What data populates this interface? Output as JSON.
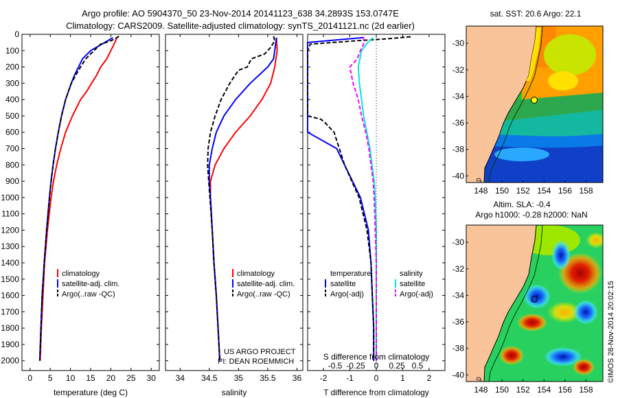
{
  "title_line1": "Argo profile: AO 5904370_50 23-Nov-2014 20141123_638 34.2893S 153.0747E",
  "title_line2": "Climatology: CARS2009. Satellite-adjusted climatology: synTS_20141121.nc (2d earlier)",
  "colors": {
    "climatology": "#ff0000",
    "satellite": "#0000ff",
    "argo": "#000000",
    "sat_salinity": "#00e5e5",
    "argo_adj": "#ff00ff",
    "land": "#f9c49a",
    "argo_marker": "#ffff00"
  },
  "depth_axis": {
    "ticks": [
      0,
      100,
      200,
      300,
      400,
      500,
      600,
      700,
      800,
      900,
      1000,
      1100,
      1200,
      1300,
      1400,
      1500,
      1600,
      1700,
      1800,
      1900,
      2000
    ],
    "ylim": [
      0,
      2060
    ]
  },
  "chart_data": [
    {
      "type": "line",
      "id": "temperature",
      "xlabel": "temperature (deg C)",
      "xlim": [
        -2,
        32
      ],
      "xticks": [
        0,
        5,
        10,
        15,
        20,
        25,
        30
      ],
      "legend": [
        "climatology",
        "satellite-adj. clim.",
        "Argo(..raw -QC)"
      ],
      "series": [
        {
          "name": "climatology",
          "style": "solid",
          "color_key": "climatology",
          "depth": [
            20,
            50,
            100,
            150,
            200,
            250,
            300,
            350,
            400,
            450,
            500,
            600,
            700,
            800,
            900,
            1000,
            1200,
            1400,
            1600,
            1800,
            2000
          ],
          "values": [
            21.5,
            21,
            20,
            19,
            17.5,
            16.5,
            15.2,
            14,
            12.5,
            11.5,
            10.5,
            8.8,
            7.6,
            6.6,
            5.8,
            5.2,
            4.3,
            3.6,
            3.2,
            2.8,
            2.5
          ]
        },
        {
          "name": "satellite-adj. clim.",
          "style": "solid",
          "color_key": "satellite",
          "depth": [
            20,
            50,
            100,
            150,
            200,
            250,
            300,
            400,
            500,
            600,
            700,
            800,
            900,
            1000,
            1200,
            1400,
            1600,
            1800,
            2000
          ],
          "values": [
            20.5,
            18.5,
            15,
            13,
            12,
            11,
            10.2,
            8.8,
            7.8,
            7,
            6.3,
            5.7,
            5.2,
            4.8,
            4.1,
            3.5,
            3,
            2.7,
            2.4
          ]
        },
        {
          "name": "Argo(..raw -QC)",
          "style": "dashed",
          "color_key": "argo",
          "depth": [
            12,
            20,
            40,
            60,
            100,
            150,
            200,
            250,
            300,
            400,
            500,
            600,
            700,
            800,
            900,
            1000,
            1200,
            1400,
            1600,
            1800,
            2000
          ],
          "values": [
            22,
            21.5,
            20,
            17.5,
            15.8,
            13.8,
            12.5,
            11.3,
            10.2,
            8.8,
            7.8,
            7,
            6.3,
            5.7,
            5.2,
            4.8,
            4.1,
            3.5,
            3,
            2.7,
            2.4
          ]
        }
      ]
    },
    {
      "type": "line",
      "id": "salinity",
      "xlabel": "salinity",
      "xlim": [
        33.75,
        36.1
      ],
      "xticks": [
        34,
        34.5,
        35,
        35.5,
        36
      ],
      "legend": [
        "climatology",
        "satellite-adj. clim.",
        "Argo(..raw -QC)"
      ],
      "annotation": [
        "US ARGO PROJECT",
        "PI: DEAN ROEMMICH"
      ],
      "series": [
        {
          "name": "climatology",
          "style": "solid",
          "color_key": "climatology",
          "depth": [
            20,
            100,
            200,
            300,
            400,
            500,
            600,
            700,
            800,
            900,
            1000,
            1200,
            1400,
            1600,
            1800,
            2000
          ],
          "values": [
            35.65,
            35.66,
            35.62,
            35.55,
            35.4,
            35.2,
            34.95,
            34.75,
            34.6,
            34.52,
            34.52,
            34.55,
            34.58,
            34.62,
            34.65,
            34.68
          ]
        },
        {
          "name": "satellite-adj. clim.",
          "style": "solid",
          "color_key": "satellite",
          "depth": [
            20,
            100,
            150,
            200,
            300,
            400,
            500,
            600,
            700,
            800,
            900,
            1000,
            1200,
            1400,
            1600,
            1800,
            2000
          ],
          "values": [
            35.65,
            35.62,
            35.6,
            35.5,
            35.2,
            34.95,
            34.75,
            34.62,
            34.55,
            34.5,
            34.5,
            34.52,
            34.55,
            34.58,
            34.62,
            34.65,
            34.68
          ]
        },
        {
          "name": "Argo(..raw -QC)",
          "style": "dashed",
          "color_key": "argo",
          "depth": [
            12,
            40,
            80,
            120,
            150,
            200,
            220,
            300,
            400,
            500,
            600,
            700,
            800,
            900,
            1000,
            1200,
            1400,
            1600,
            1800,
            2000
          ],
          "values": [
            35.6,
            35.62,
            35.55,
            35.45,
            35.22,
            35.15,
            35.0,
            34.85,
            34.7,
            34.6,
            34.52,
            34.48,
            34.47,
            34.49,
            34.51,
            34.55,
            34.58,
            34.62,
            34.65,
            34.68
          ]
        }
      ]
    },
    {
      "type": "line",
      "id": "difference",
      "xlabel": "T difference from climatology",
      "xlabel_top": "S difference from climatology",
      "xlim": [
        -2.6,
        2.6
      ],
      "xticks": [
        -2,
        -1,
        0,
        1,
        2
      ],
      "xticks_s": [
        "-0.5",
        "-0.25",
        "0",
        "0.25",
        "0.5"
      ],
      "legend_temperature_header": "temperature",
      "legend_salinity_header": "salinity",
      "legend": [
        "satellite",
        "Argo(-adj)",
        "satellite",
        "Argo(-adj)"
      ],
      "series": [
        {
          "name": "T satellite",
          "style": "solid",
          "color_key": "satellite",
          "depth": [
            20,
            50,
            60,
            100,
            200,
            400,
            600,
            700,
            800,
            1000,
            1200,
            1400,
            1600,
            1800,
            2000
          ],
          "values": [
            -0.5,
            -2.6,
            -2.6,
            -2.6,
            -2.6,
            -2.6,
            -2.6,
            -1.5,
            -1.2,
            -0.6,
            -0.3,
            -0.2,
            -0.15,
            -0.1,
            -0.1
          ]
        },
        {
          "name": "T Argo(-adj)",
          "style": "dashed",
          "color_key": "argo",
          "depth": [
            15,
            30,
            40,
            60,
            100,
            200,
            400,
            500,
            520,
            540,
            600,
            800,
            1000,
            1200,
            1400,
            1600,
            1800,
            2000
          ],
          "values": [
            1.3,
            0.2,
            -0.8,
            -2.5,
            -2.6,
            -2.6,
            -2.6,
            -2.6,
            -2.1,
            -1.95,
            -1.6,
            -1.2,
            -0.65,
            -0.35,
            -0.2,
            -0.15,
            -0.1,
            -0.1
          ]
        },
        {
          "name": "S satellite",
          "style": "solid",
          "color_key": "sat_salinity",
          "depth": [
            20,
            50,
            100,
            200,
            300,
            400,
            500,
            600,
            700,
            800,
            900,
            1000,
            1200,
            1400,
            1600,
            1800,
            2000
          ],
          "values": [
            -0.03,
            -0.08,
            -0.14,
            -0.17,
            -0.16,
            -0.14,
            -0.12,
            -0.09,
            -0.06,
            -0.04,
            -0.02,
            -0.01,
            0,
            0,
            0,
            0,
            0
          ]
        },
        {
          "name": "S Argo(-adj)",
          "style": "dashed",
          "color_key": "argo_adj",
          "depth": [
            15,
            60,
            100,
            150,
            200,
            300,
            400,
            500,
            600,
            700,
            800,
            900,
            1000,
            1200,
            1400,
            1600,
            1800,
            2000
          ],
          "values": [
            -0.12,
            -0.12,
            -0.15,
            -0.18,
            -0.25,
            -0.22,
            -0.17,
            -0.14,
            -0.1,
            -0.07,
            -0.05,
            -0.03,
            -0.02,
            -0.01,
            0,
            0,
            0,
            0
          ]
        }
      ]
    },
    {
      "type": "heatmap",
      "id": "sst_map",
      "title": "sat. SST: 20.6  Argo: 22.1",
      "xlim": [
        146.6,
        159.6
      ],
      "ylim": [
        -40.5,
        -28.7
      ],
      "xticks": [
        148,
        150,
        152,
        154,
        156,
        158
      ],
      "yticks": [
        -30,
        -32,
        -34,
        -36,
        -38,
        -40
      ],
      "argo_position": {
        "lon": 153.07,
        "lat": -34.29
      }
    },
    {
      "type": "heatmap",
      "id": "sla_map",
      "title_line1": "Altim. SLA: -0.4",
      "title_line2": "Argo h1000: -0.28 h2000: NaN",
      "xlim": [
        146.6,
        159.6
      ],
      "ylim": [
        -40.5,
        -28.7
      ],
      "xticks": [
        148,
        150,
        152,
        154,
        156,
        158
      ],
      "yticks": [
        -30,
        -32,
        -34,
        -36,
        -38,
        -40
      ],
      "argo_position": {
        "lon": 153.07,
        "lat": -34.29
      }
    }
  ],
  "credit": "©IMOS 28-Nov-2014 20:02:15"
}
